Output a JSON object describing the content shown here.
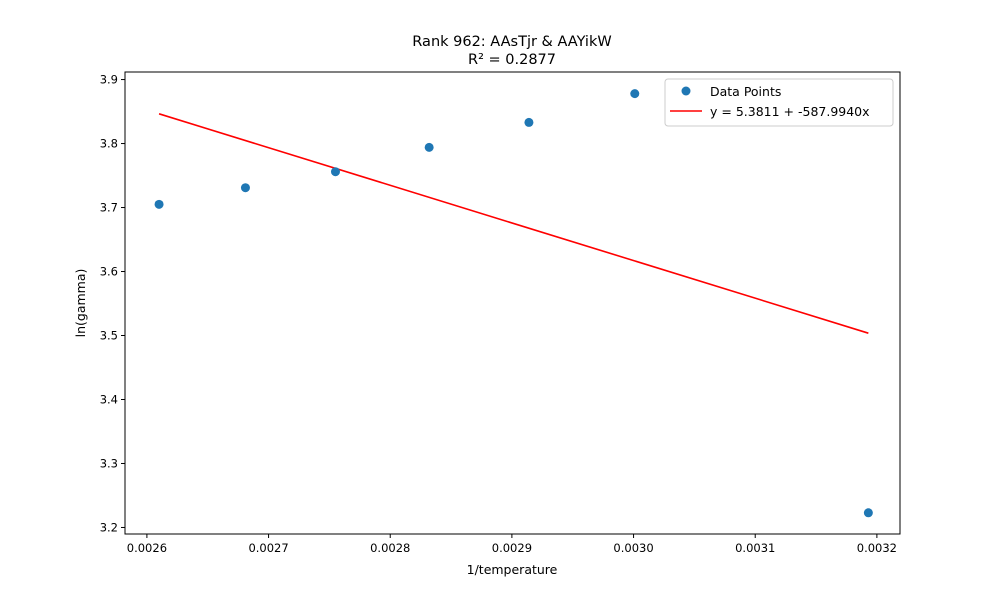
{
  "chart_data": {
    "type": "scatter",
    "title": "Rank 962: AAsTjr & AAYikW",
    "subtitle": "R² = 0.2877",
    "xlabel": "1/temperature",
    "ylabel": "ln(gamma)",
    "xlim": [
      0.002582,
      0.003219
    ],
    "ylim": [
      3.1898,
      3.9118
    ],
    "xticks": [
      0.0026,
      0.0027,
      0.0028,
      0.0029,
      0.003,
      0.0031,
      0.0032
    ],
    "xtick_labels": [
      "0.0026",
      "0.0027",
      "0.0028",
      "0.0029",
      "0.0030",
      "0.0031",
      "0.0032"
    ],
    "yticks": [
      3.2,
      3.3,
      3.4,
      3.5,
      3.6,
      3.7,
      3.8,
      3.9
    ],
    "ytick_labels": [
      "3.2",
      "3.3",
      "3.4",
      "3.5",
      "3.6",
      "3.7",
      "3.8",
      "3.9"
    ],
    "grid": false,
    "legend_position": "top-right",
    "series": [
      {
        "name": "Data Points",
        "type": "scatter",
        "color": "#1f77b4",
        "x": [
          0.00261,
          0.002681,
          0.002755,
          0.002832,
          0.002914,
          0.003001,
          0.003193
        ],
        "y": [
          3.705,
          3.731,
          3.756,
          3.794,
          3.833,
          3.878,
          3.223
        ]
      },
      {
        "name": "y = 5.3811 + -587.9940x",
        "type": "line",
        "color": "#ff0000",
        "intercept": 5.3811,
        "slope": -587.994,
        "x_range": [
          0.00261,
          0.003193
        ]
      }
    ]
  }
}
